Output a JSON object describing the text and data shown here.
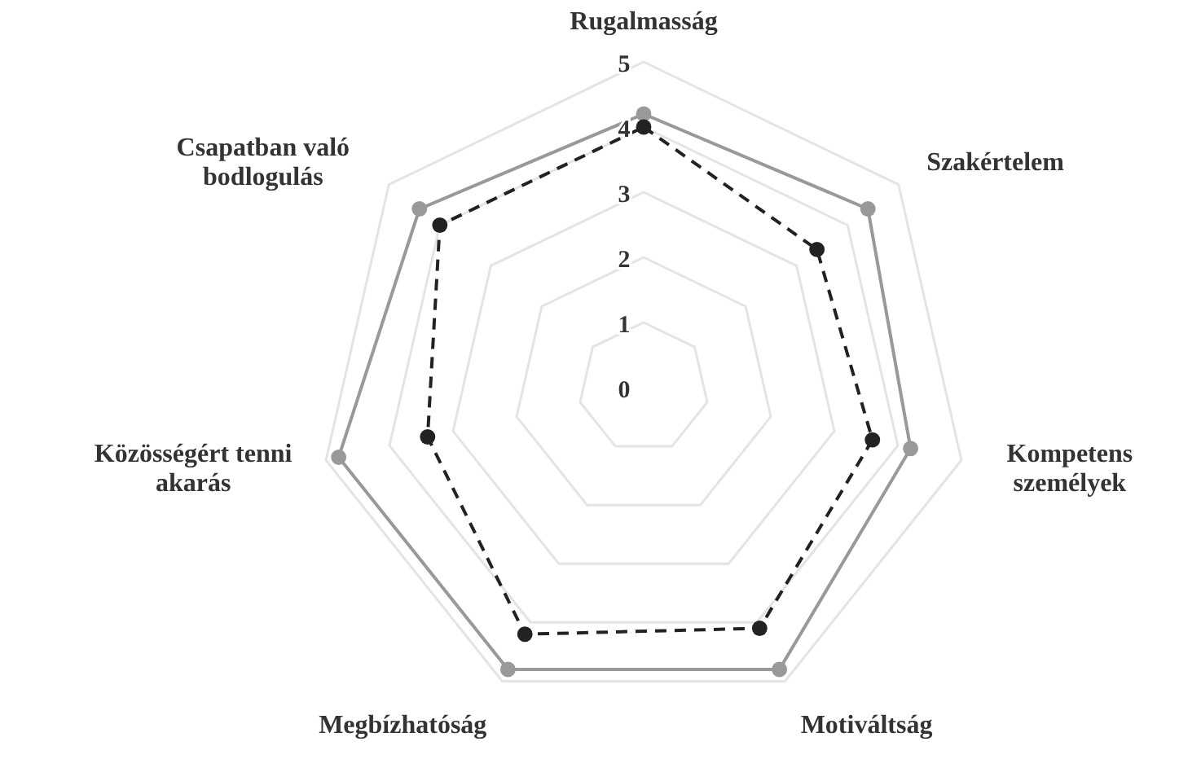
{
  "chart_data": {
    "type": "radar",
    "categories": [
      "Rugalmasság",
      "Szakértelem",
      "Kompetens\nszemélyek",
      "Motiváltság",
      "Megbízhatóság",
      "Közösségért tenni\nakarás",
      "Csapatban való\nbodlogulás"
    ],
    "ylim": [
      0,
      5
    ],
    "yticks": [
      0,
      1,
      2,
      3,
      4,
      5
    ],
    "grid": true,
    "marker": "circle",
    "series": [
      {
        "color": "#999999",
        "line_style": "solid",
        "values": [
          4.2,
          4.4,
          4.2,
          4.8,
          4.8,
          4.8,
          4.4
        ]
      },
      {
        "color": "#222222",
        "line_style": "dashed",
        "values": [
          4.0,
          3.4,
          3.6,
          4.1,
          4.2,
          3.4,
          4.0
        ]
      }
    ]
  }
}
